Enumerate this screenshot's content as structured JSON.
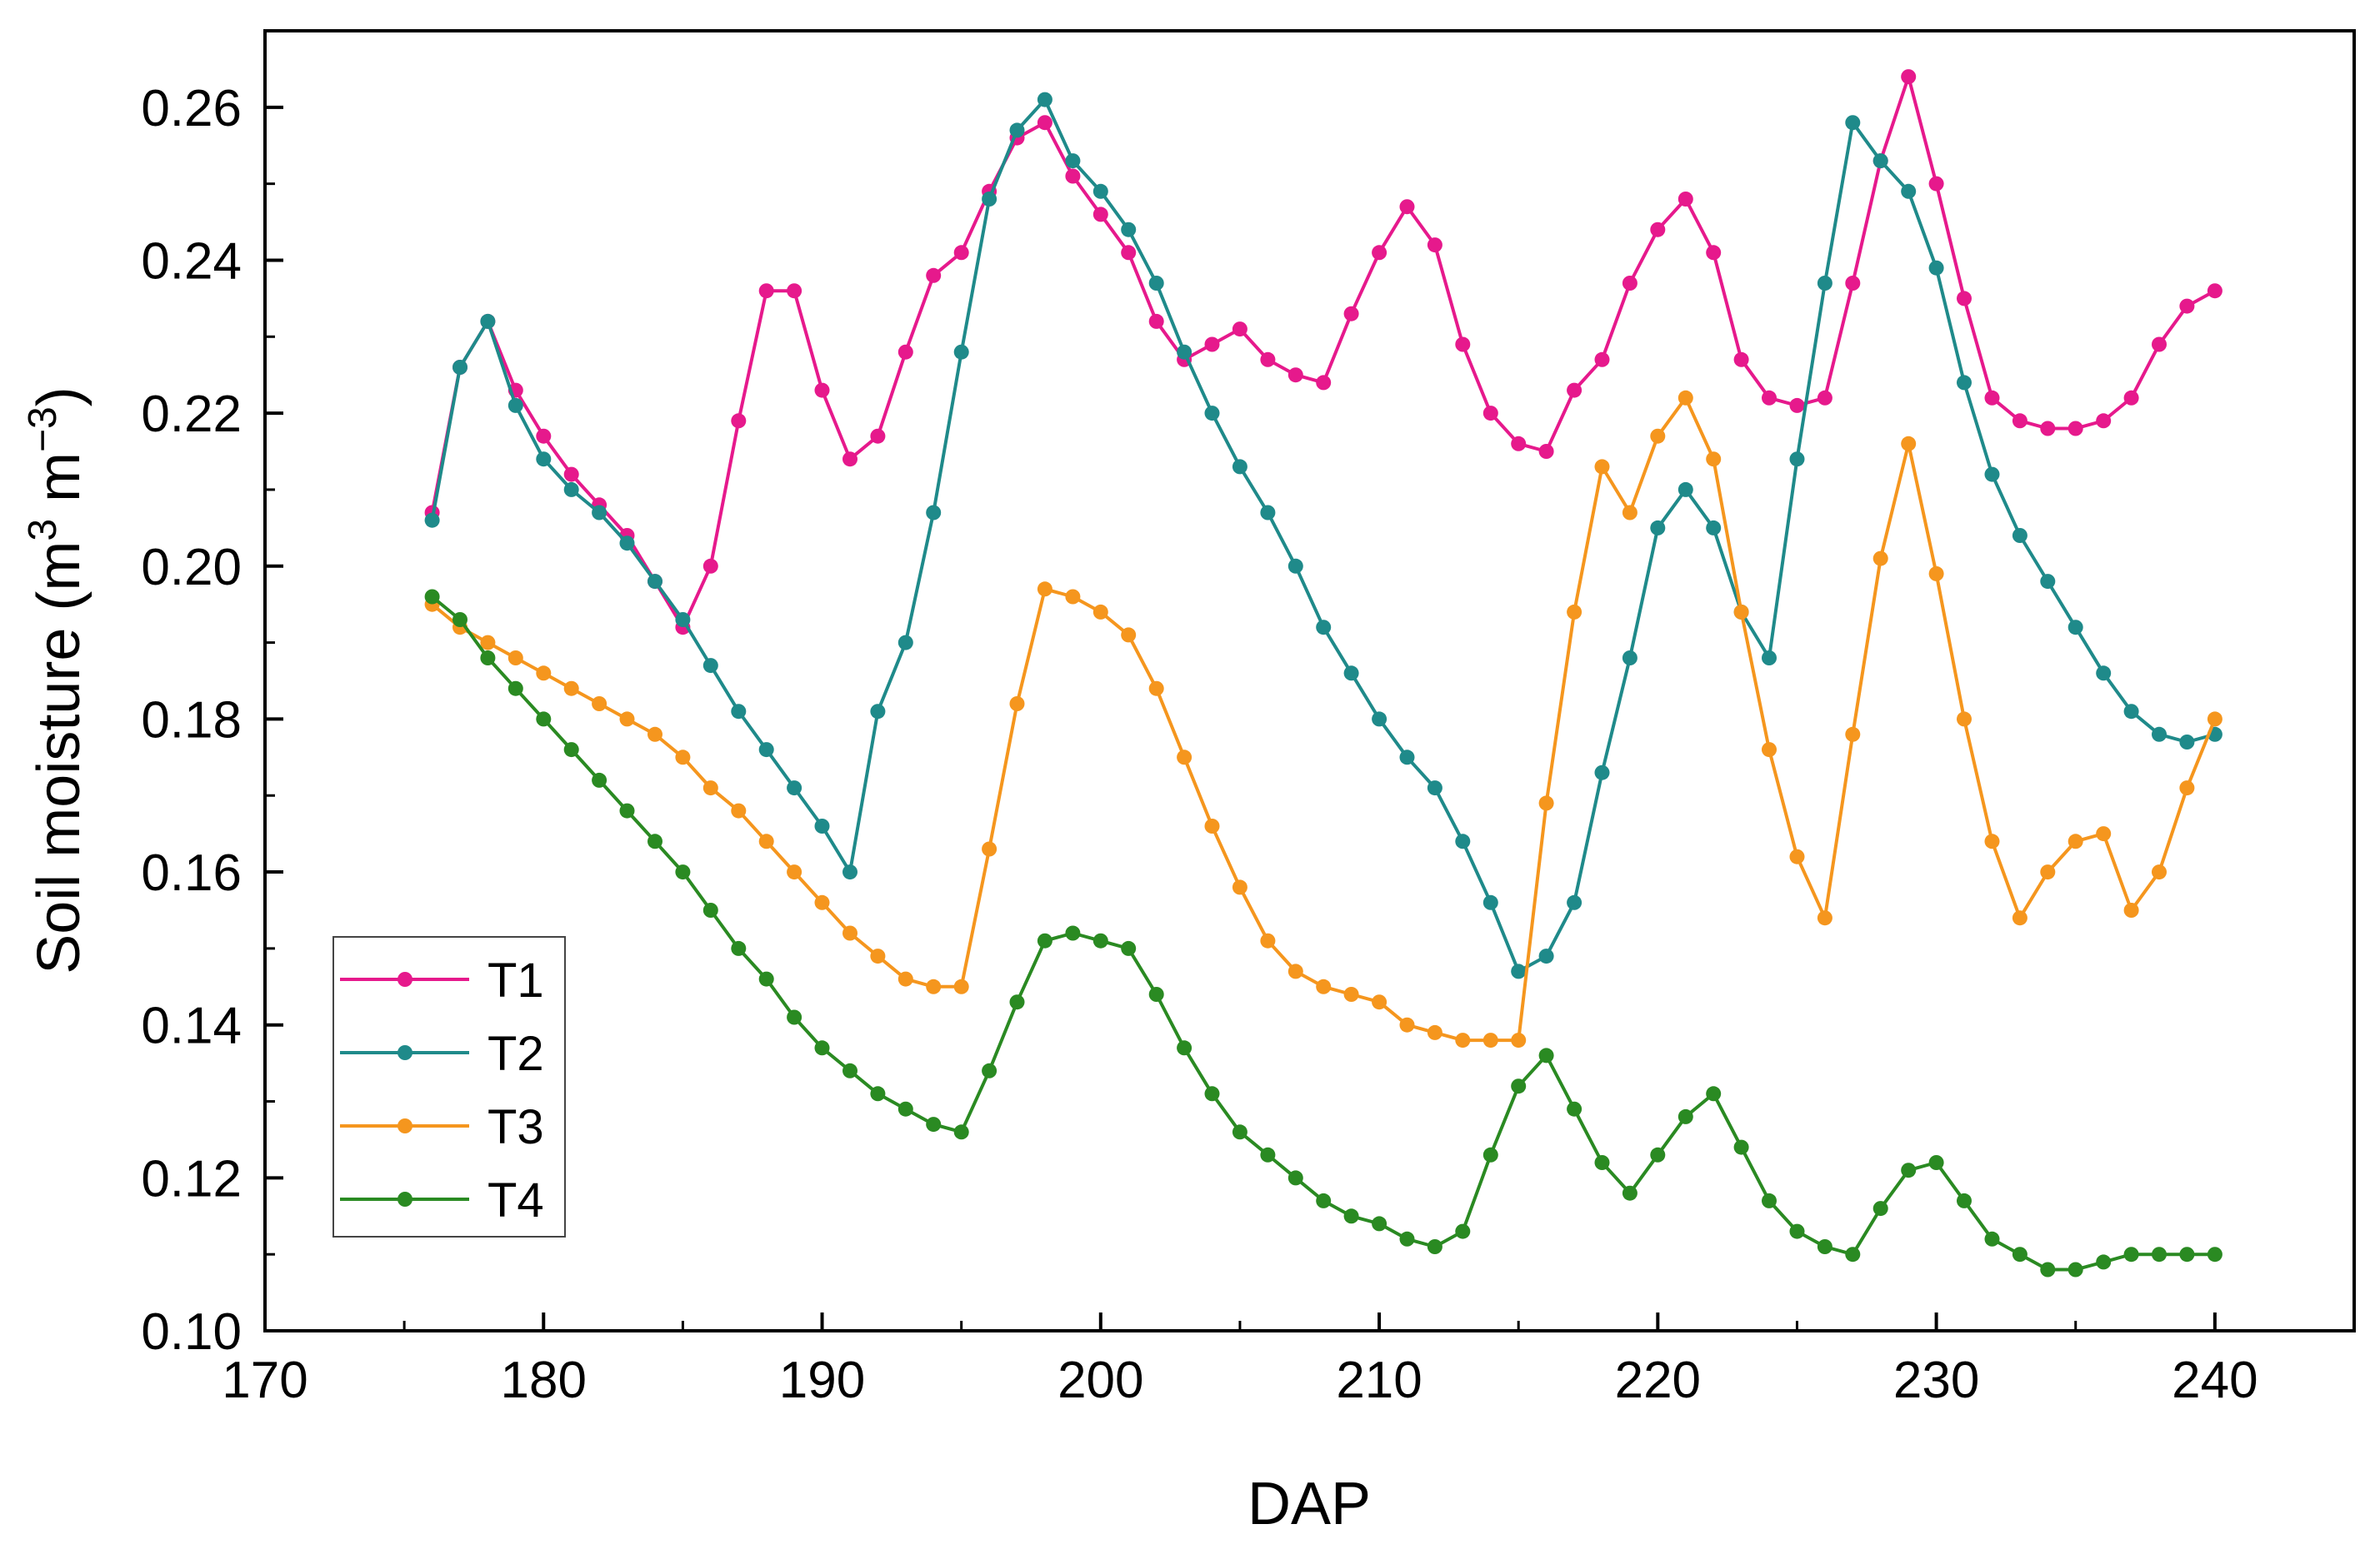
{
  "chart_data": {
    "type": "line",
    "title": "",
    "xlabel": "DAP",
    "ylabel": {
      "prefix": "Soil moisture (m",
      "sup1": "3",
      "mid": " m",
      "sup2": "−3",
      "suffix": ")"
    },
    "xlim": [
      170,
      245
    ],
    "ylim": [
      0.1,
      0.27
    ],
    "xticks": [
      170,
      180,
      190,
      200,
      210,
      220,
      230,
      240
    ],
    "yticks": [
      0.1,
      0.12,
      0.14,
      0.16,
      0.18,
      0.2,
      0.22,
      0.24,
      0.26
    ],
    "xtick_labels": [
      "170",
      "180",
      "190",
      "200",
      "210",
      "220",
      "230",
      "240"
    ],
    "ytick_labels": [
      "0.10",
      "0.12",
      "0.14",
      "0.16",
      "0.18",
      "0.20",
      "0.22",
      "0.24",
      "0.26"
    ],
    "legend_position": "bottom-left",
    "x": [
      176,
      177,
      178,
      179,
      180,
      181,
      182,
      183,
      184,
      185,
      186,
      187,
      188,
      189,
      190,
      191,
      192,
      193,
      194,
      195,
      196,
      197,
      198,
      199,
      200,
      201,
      202,
      203,
      204,
      205,
      206,
      207,
      208,
      209,
      210,
      211,
      212,
      213,
      214,
      215,
      216,
      217,
      218,
      219,
      220,
      221,
      222,
      223,
      224,
      225,
      226,
      227,
      228,
      229,
      230,
      231,
      232,
      233,
      234,
      235,
      236,
      237,
      238,
      239,
      240
    ],
    "series": [
      {
        "name": "T1",
        "color": "#e6198c",
        "values": [
          0.207,
          0.226,
          0.232,
          0.223,
          0.217,
          0.212,
          0.208,
          0.204,
          0.198,
          0.192,
          0.2,
          0.219,
          0.236,
          0.236,
          0.223,
          0.214,
          0.217,
          0.228,
          0.238,
          0.241,
          0.249,
          0.256,
          0.258,
          0.251,
          0.246,
          0.241,
          0.232,
          0.227,
          0.229,
          0.231,
          0.227,
          0.225,
          0.224,
          0.233,
          0.241,
          0.247,
          0.242,
          0.229,
          0.22,
          0.216,
          0.215,
          0.223,
          0.227,
          0.237,
          0.244,
          0.248,
          0.241,
          0.227,
          0.222,
          0.221,
          0.222,
          0.237,
          0.253,
          0.264,
          0.25,
          0.235,
          0.222,
          0.219,
          0.218,
          0.218,
          0.219,
          0.222,
          0.229,
          0.234,
          0.236
        ]
      },
      {
        "name": "T2",
        "color": "#1f8a8a",
        "values": [
          0.206,
          0.226,
          0.232,
          0.221,
          0.214,
          0.21,
          0.207,
          0.203,
          0.198,
          0.193,
          0.187,
          0.181,
          0.176,
          0.171,
          0.166,
          0.16,
          0.181,
          0.19,
          0.207,
          0.228,
          0.248,
          0.257,
          0.261,
          0.253,
          0.249,
          0.244,
          0.237,
          0.228,
          0.22,
          0.213,
          0.207,
          0.2,
          0.192,
          0.186,
          0.18,
          0.175,
          0.171,
          0.164,
          0.156,
          0.147,
          0.149,
          0.156,
          0.173,
          0.188,
          0.205,
          0.21,
          0.205,
          0.194,
          0.188,
          0.214,
          0.237,
          0.258,
          0.253,
          0.249,
          0.239,
          0.224,
          0.212,
          0.204,
          0.198,
          0.192,
          0.186,
          0.181,
          0.178,
          0.177,
          0.178
        ]
      },
      {
        "name": "T3",
        "color": "#f5961e",
        "values": [
          0.195,
          0.192,
          0.19,
          0.188,
          0.186,
          0.184,
          0.182,
          0.18,
          0.178,
          0.175,
          0.171,
          0.168,
          0.164,
          0.16,
          0.156,
          0.152,
          0.149,
          0.146,
          0.145,
          0.145,
          0.163,
          0.182,
          0.197,
          0.196,
          0.194,
          0.191,
          0.184,
          0.175,
          0.166,
          0.158,
          0.151,
          0.147,
          0.145,
          0.144,
          0.143,
          0.14,
          0.139,
          0.138,
          0.138,
          0.138,
          0.169,
          0.194,
          0.213,
          0.207,
          0.217,
          0.222,
          0.214,
          0.194,
          0.176,
          0.162,
          0.154,
          0.178,
          0.201,
          0.216,
          0.199,
          0.18,
          0.164,
          0.154,
          0.16,
          0.164,
          0.165,
          0.155,
          0.16,
          0.171,
          0.18
        ]
      },
      {
        "name": "T4",
        "color": "#2a8a22",
        "values": [
          0.196,
          0.193,
          0.188,
          0.184,
          0.18,
          0.176,
          0.172,
          0.168,
          0.164,
          0.16,
          0.155,
          0.15,
          0.146,
          0.141,
          0.137,
          0.134,
          0.131,
          0.129,
          0.127,
          0.126,
          0.134,
          0.143,
          0.151,
          0.152,
          0.151,
          0.15,
          0.144,
          0.137,
          0.131,
          0.126,
          0.123,
          0.12,
          0.117,
          0.115,
          0.114,
          0.112,
          0.111,
          0.113,
          0.123,
          0.132,
          0.136,
          0.129,
          0.122,
          0.118,
          0.123,
          0.128,
          0.131,
          0.124,
          0.117,
          0.113,
          0.111,
          0.11,
          0.116,
          0.121,
          0.122,
          0.117,
          0.112,
          0.11,
          0.108,
          0.108,
          0.109,
          0.11,
          0.11,
          0.11,
          0.11
        ]
      }
    ]
  }
}
